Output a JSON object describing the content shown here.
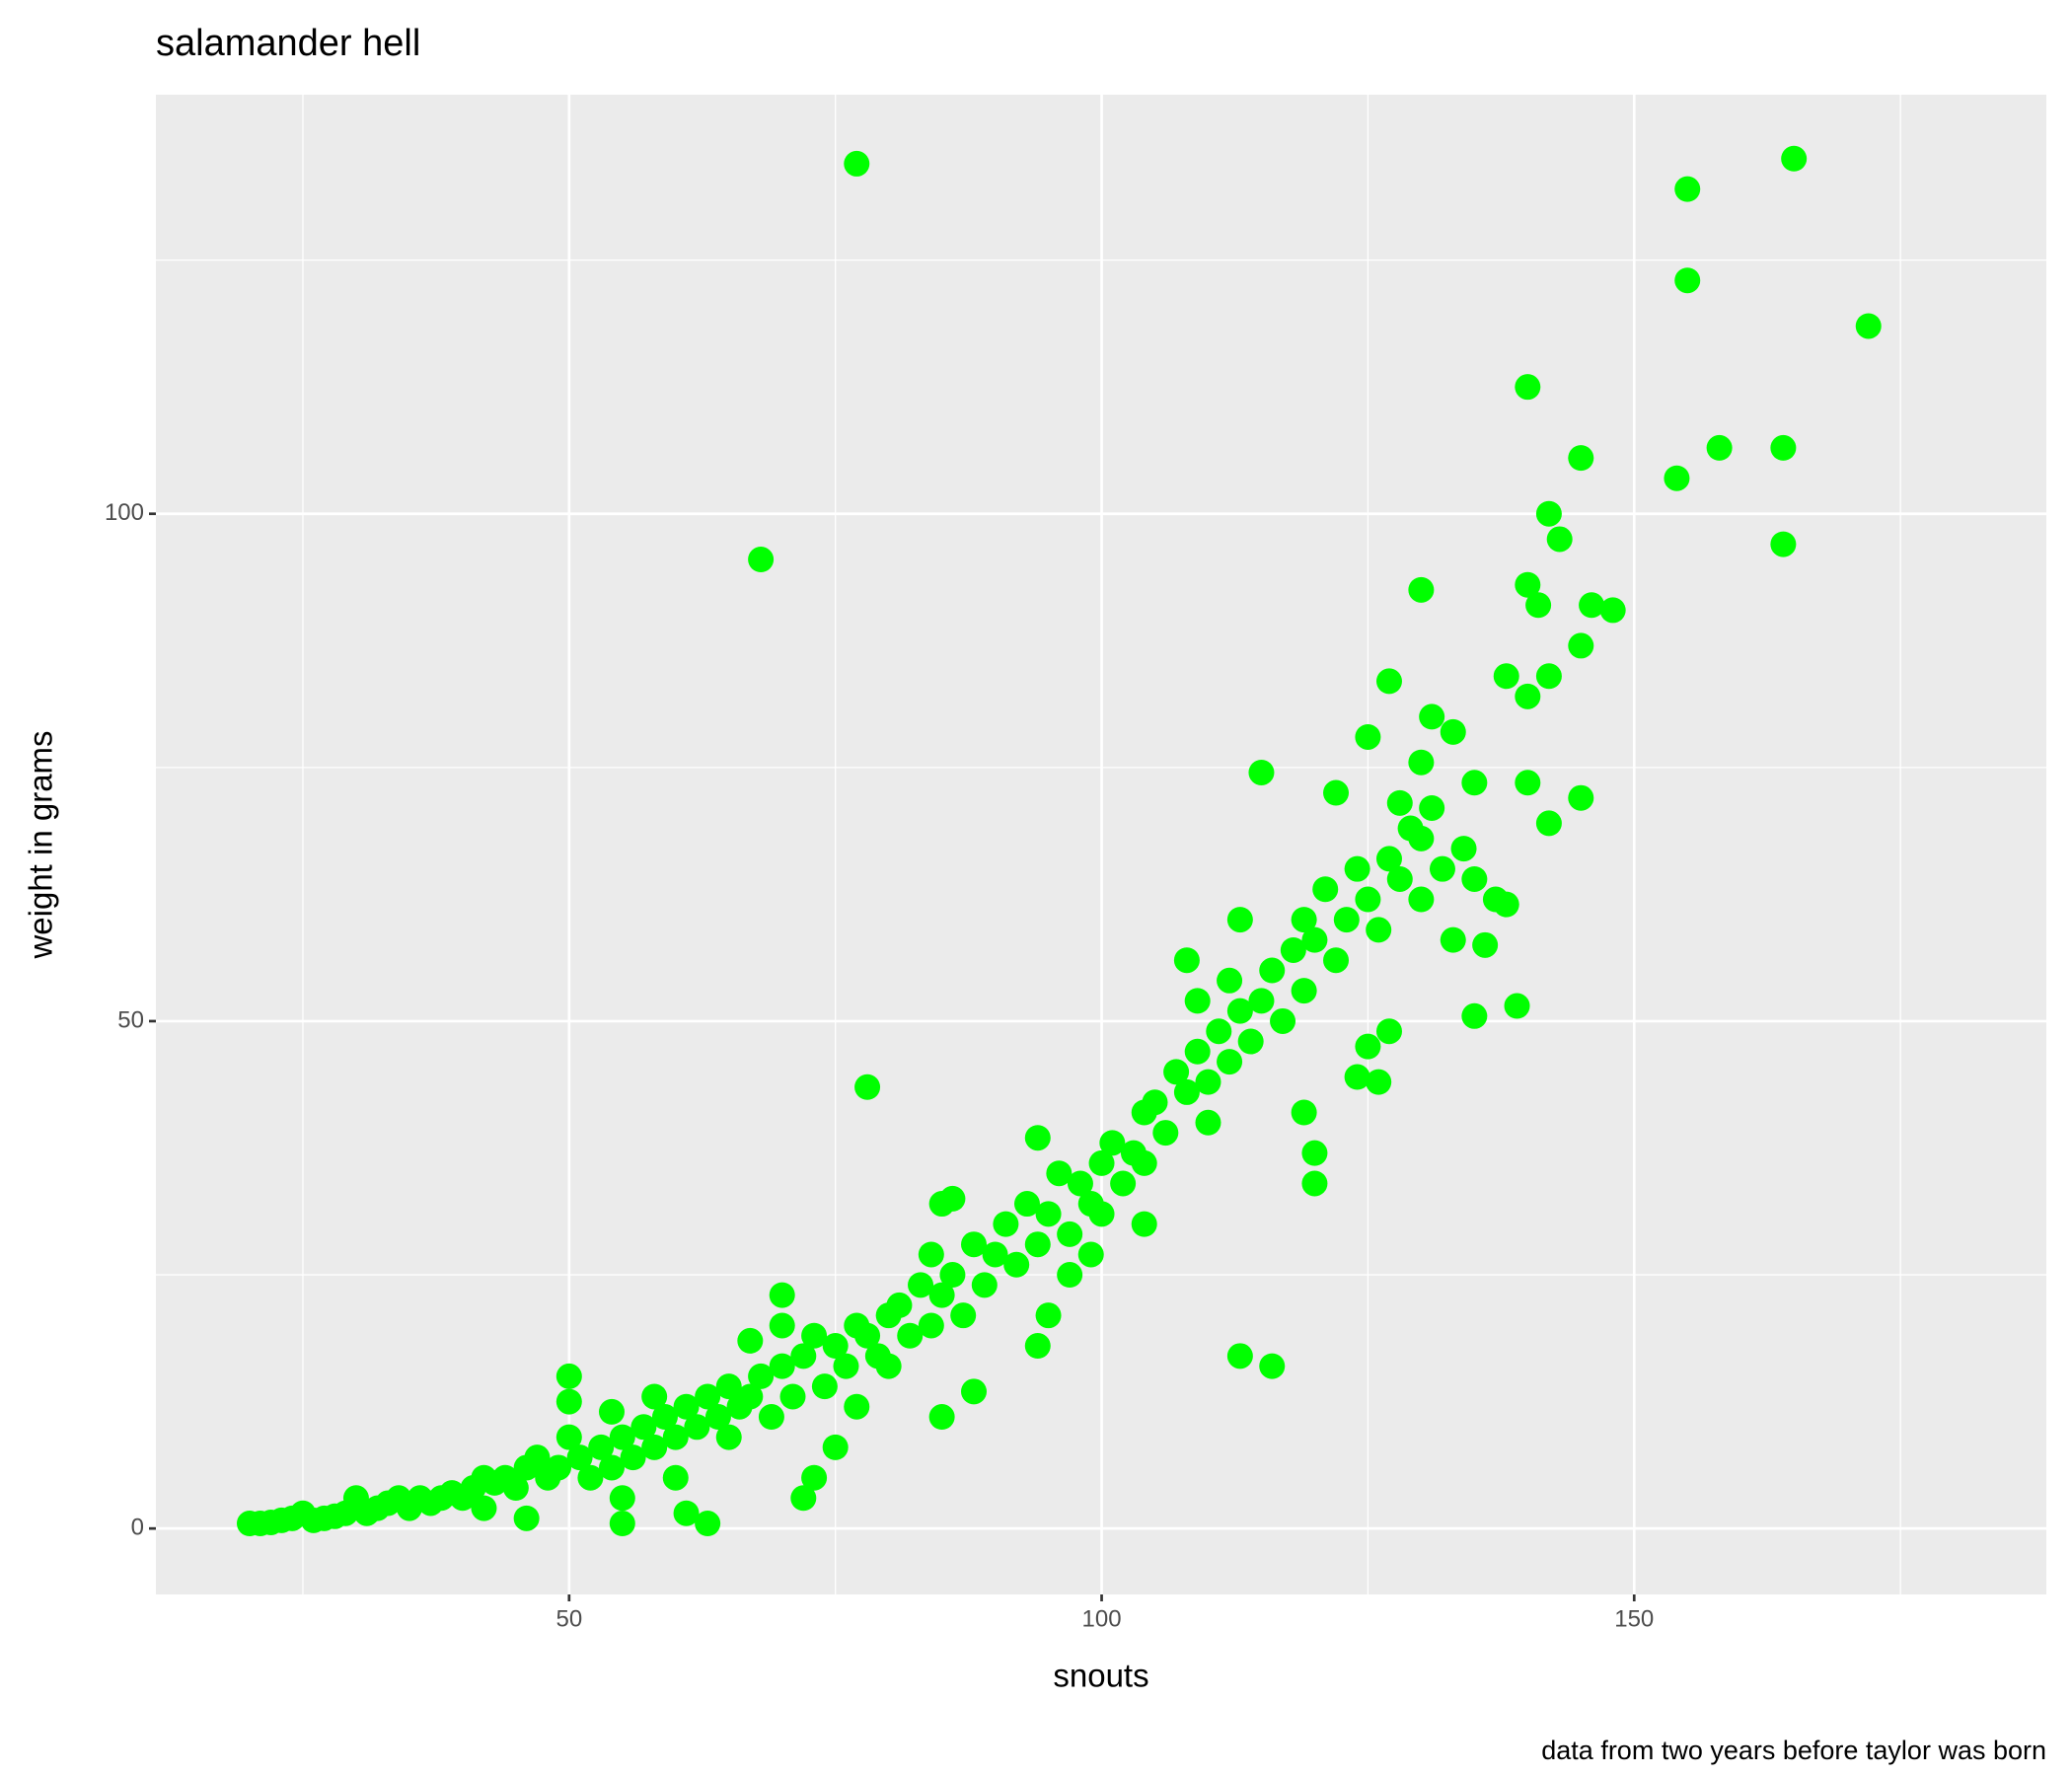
{
  "chart_data": {
    "type": "scatter",
    "title": "salamander hell",
    "x_label": "snouts",
    "y_label": "weight in grams",
    "caption": "data from two years before taylor was born",
    "color": "#00ff00",
    "background": "#ebebeb",
    "grid": true,
    "xlim": [
      11.2,
      188.7
    ],
    "ylim": [
      -6.5,
      141.3
    ],
    "xticks": [
      50,
      100,
      150
    ],
    "yticks": [
      0,
      50,
      100
    ],
    "x": [
      77,
      68,
      78,
      155,
      155,
      165,
      172,
      140,
      158,
      164,
      154,
      164,
      145,
      142,
      143,
      140,
      130,
      146,
      148,
      141,
      145,
      138,
      140,
      142,
      127,
      131,
      133,
      125,
      115,
      140,
      145,
      142,
      135,
      122,
      130,
      128,
      137,
      138,
      136,
      139,
      135,
      127,
      125,
      124,
      126,
      119,
      120,
      120,
      104,
      113,
      116,
      94,
      85,
      86,
      70,
      72,
      73,
      75,
      61,
      63,
      55,
      50,
      50,
      85,
      88,
      94,
      95,
      97,
      99,
      67,
      58,
      54,
      20,
      21,
      22,
      23,
      24,
      25,
      26,
      27,
      28,
      29,
      30,
      31,
      32,
      33,
      34,
      35,
      36,
      37,
      38,
      39,
      40,
      41,
      42,
      42,
      43,
      44,
      45,
      46,
      46,
      47,
      48,
      49,
      50,
      51,
      52,
      53,
      54,
      55,
      55,
      56,
      57,
      58,
      59,
      60,
      60,
      61,
      62,
      63,
      64,
      65,
      65,
      66,
      67,
      68,
      69,
      70,
      70,
      71,
      72,
      73,
      74,
      75,
      76,
      77,
      77,
      78,
      79,
      80,
      80,
      81,
      82,
      83,
      84,
      84,
      85,
      86,
      87,
      88,
      89,
      90,
      91,
      92,
      93,
      94,
      95,
      96,
      97,
      98,
      99,
      100,
      100,
      101,
      102,
      103,
      104,
      104,
      105,
      106,
      107,
      108,
      108,
      109,
      110,
      110,
      111,
      112,
      112,
      113,
      114,
      115,
      116,
      117,
      118,
      119,
      119,
      120,
      121,
      122,
      123,
      124,
      125,
      126,
      127,
      128,
      129,
      130,
      130,
      131,
      132,
      133,
      134,
      135,
      113,
      109
    ],
    "y": [
      134.5,
      95.5,
      43.5,
      132,
      123,
      135,
      118.5,
      112.5,
      106.5,
      106.5,
      103.5,
      97,
      105.5,
      100,
      97.5,
      93,
      92.5,
      91,
      90.5,
      91,
      87,
      84,
      82,
      84,
      83.5,
      80,
      78.5,
      78,
      74.5,
      73.5,
      72,
      69.5,
      73.5,
      72.5,
      75.5,
      71.5,
      62,
      61.5,
      57.5,
      51.5,
      50.5,
      49,
      47.5,
      44.5,
      44,
      41,
      37,
      34,
      36,
      17,
      16,
      38.5,
      32,
      32.5,
      23,
      3,
      5,
      8,
      1.5,
      0.5,
      0.5,
      15,
      12.5,
      11,
      13.5,
      18,
      21,
      25,
      27,
      18.5,
      13,
      11.5,
      0.5,
      0.5,
      0.6,
      0.8,
      1,
      1.5,
      0.8,
      1,
      1.2,
      1.5,
      3,
      1.5,
      2,
      2.5,
      3,
      2,
      3,
      2.5,
      3,
      3.5,
      3,
      4,
      5,
      2,
      4.5,
      5,
      4,
      6,
      1,
      7,
      5,
      6,
      9,
      7,
      5,
      8,
      6,
      9,
      3,
      7,
      10,
      8,
      11,
      9,
      5,
      12,
      10,
      13,
      11,
      14,
      9,
      12,
      13,
      15,
      11,
      16,
      20,
      13,
      17,
      19,
      14,
      18,
      16,
      20,
      12,
      19,
      17,
      21,
      16,
      22,
      19,
      24,
      20,
      27,
      23,
      25,
      21,
      28,
      24,
      27,
      30,
      26,
      32,
      28,
      31,
      35,
      29,
      34,
      32,
      36,
      31,
      38,
      34,
      37,
      41,
      30,
      42,
      39,
      45,
      43,
      56,
      47,
      44,
      40,
      49,
      46,
      54,
      51,
      48,
      52,
      55,
      50,
      57,
      60,
      53,
      58,
      63,
      56,
      60,
      65,
      62,
      59,
      66,
      64,
      69,
      68,
      62,
      71,
      65,
      58,
      67,
      64,
      60,
      52
    ]
  }
}
